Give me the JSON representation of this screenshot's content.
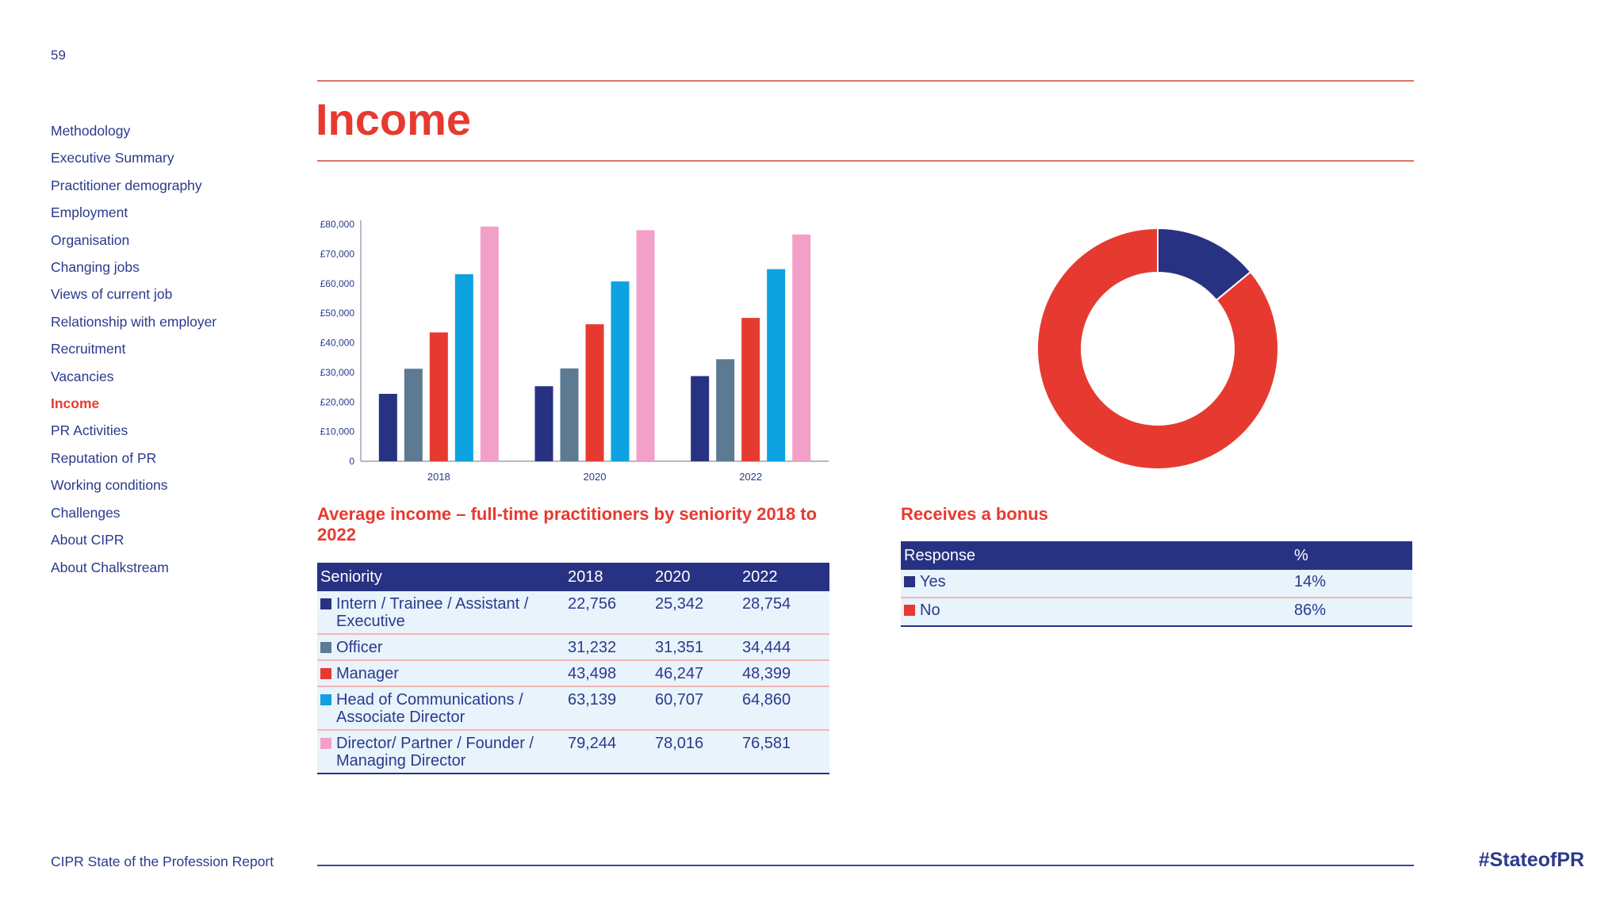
{
  "page_number": "59",
  "sidebar": {
    "items": [
      {
        "label": "Methodology"
      },
      {
        "label": "Executive Summary"
      },
      {
        "label": "Practitioner demography"
      },
      {
        "label": "Employment"
      },
      {
        "label": "Organisation"
      },
      {
        "label": "Changing jobs"
      },
      {
        "label": "Views of current job"
      },
      {
        "label": "Relationship with employer"
      },
      {
        "label": "Recruitment"
      },
      {
        "label": "Vacancies"
      },
      {
        "label": "Income",
        "active": true
      },
      {
        "label": "PR Activities"
      },
      {
        "label": "Reputation of PR"
      },
      {
        "label": "Working conditions"
      },
      {
        "label": "Challenges"
      },
      {
        "label": "About CIPR"
      },
      {
        "label": "About Chalkstream"
      }
    ]
  },
  "page_title": "Income",
  "colors": {
    "navy": "#283283",
    "slate": "#5c7a92",
    "red": "#e63a30",
    "cyan": "#0ea2e0",
    "pink": "#f2a0c8",
    "accent": "#e63a30",
    "text": "#2b3a8c"
  },
  "chart_data": [
    {
      "type": "bar",
      "categories": [
        "2018",
        "2020",
        "2022"
      ],
      "series": [
        {
          "name": "Intern / Trainee / Assistant / Executive",
          "color": "#283283",
          "values": [
            22756,
            25342,
            28754
          ]
        },
        {
          "name": "Officer",
          "color": "#5c7a92",
          "values": [
            31232,
            31351,
            34444
          ]
        },
        {
          "name": "Manager",
          "color": "#e63a30",
          "values": [
            43498,
            46247,
            48399
          ]
        },
        {
          "name": "Head of Communications / Associate Director",
          "color": "#0ea2e0",
          "values": [
            63139,
            60707,
            64860
          ]
        },
        {
          "name": "Director/ Partner / Founder / Managing Director",
          "color": "#f2a0c8",
          "values": [
            79244,
            78016,
            76581
          ]
        }
      ],
      "ylim": [
        0,
        80000
      ],
      "yticks": [
        "0",
        "£10,000",
        "£20,000",
        "£30,000",
        "£40,000",
        "£50,000",
        "£60,000",
        "£70,000",
        "£80,000"
      ],
      "title": "Average income – full-time practitioners by seniority 2018 to 2022",
      "grid": false
    },
    {
      "type": "pie",
      "donut": true,
      "categories": [
        "Yes",
        "No"
      ],
      "values": [
        14,
        86
      ],
      "colors": [
        "#283283",
        "#e63a30"
      ],
      "title": "Receives a bonus"
    }
  ],
  "income_caption": "Average income – full-time practitioners by seniority 2018 to 2022",
  "seniority_table": {
    "headers": [
      "Seniority",
      "2018",
      "2020",
      "2022"
    ],
    "rows": [
      {
        "label": "Intern / Trainee / Assistant / Executive",
        "color": "#283283",
        "values": [
          "22,756",
          "25,342",
          "28,754"
        ]
      },
      {
        "label": "Officer",
        "color": "#5c7a92",
        "values": [
          "31,232",
          "31,351",
          "34,444"
        ]
      },
      {
        "label": "Manager",
        "color": "#e63a30",
        "values": [
          "43,498",
          "46,247",
          "48,399"
        ]
      },
      {
        "label": "Head of Communications / Associate Director",
        "color": "#0ea2e0",
        "values": [
          "63,139",
          "60,707",
          "64,860"
        ]
      },
      {
        "label": "Director/ Partner / Founder / Managing Director",
        "color": "#f2a0c8",
        "values": [
          "79,244",
          "78,016",
          "76,581"
        ]
      }
    ]
  },
  "bonus_caption": "Receives a bonus",
  "bonus_table": {
    "headers": [
      "Response",
      "%"
    ],
    "rows": [
      {
        "label": "Yes",
        "color": "#283283",
        "value": "14%"
      },
      {
        "label": "No",
        "color": "#e63a30",
        "value": "86%"
      }
    ]
  },
  "footer": {
    "report_name": "CIPR State of the Profession Report",
    "hashtag": "#StateofPR"
  }
}
